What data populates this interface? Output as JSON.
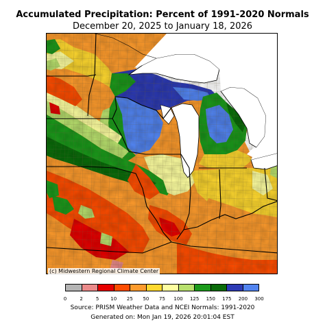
{
  "title": "Accumulated Precipitation: Percent of 1991-2020 Normals",
  "subtitle": "December 20, 2025 to January 18, 2026",
  "credit": "(c) Midwestern Regional Climate Center",
  "legend": {
    "colors": [
      "#b4b4b4",
      "#ea8a8a",
      "#e60000",
      "#fd4c01",
      "#fd9b2d",
      "#fed82f",
      "#fdfea0",
      "#b8e06e",
      "#1b9a1b",
      "#0a6b0a",
      "#2d3bb5",
      "#5284f0"
    ],
    "ticks": [
      "0",
      "2",
      "5",
      "10",
      "25",
      "50",
      "75",
      "100",
      "125",
      "150",
      "175",
      "200",
      "300"
    ]
  },
  "source": "Source: PRISM Weather Data and NCEI Normals: 1991-2020",
  "generated": "Generated on: Mon Jan 19, 2026 20:01:04 EST"
}
